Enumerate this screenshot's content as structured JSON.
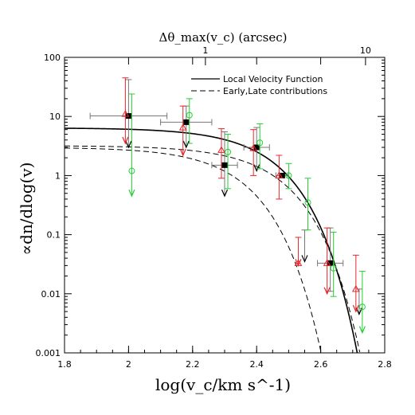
{
  "chart_data": {
    "type": "scatter",
    "title": "",
    "xlabel": "log(v_c/km s^-1)",
    "ylabel": "∝dn/dlog(v)",
    "top_xlabel": "Δθ_max(v_c)  (arcsec)",
    "xlim": [
      1.8,
      2.8
    ],
    "ylim": [
      0.001,
      100
    ],
    "y_scale": "log",
    "x_ticks": [
      1.8,
      2.0,
      2.2,
      2.4,
      2.6,
      2.8
    ],
    "x_tick_labels": [
      "1.8",
      "2",
      "2.2",
      "2.4",
      "2.6",
      "2.8"
    ],
    "y_ticks": [
      0.001,
      0.01,
      0.1,
      1,
      10,
      100
    ],
    "y_tick_labels": [
      "0.001",
      "0.01",
      "0.1",
      "1",
      "10",
      "100"
    ],
    "top_ticks": [
      1,
      10
    ],
    "top_tick_labels": [
      "1",
      "10"
    ],
    "top_tick_x": [
      2.24,
      2.74
    ],
    "legend_position": "top-right",
    "legend": [
      {
        "label": "Local Velocity Function",
        "style": "solid"
      },
      {
        "label": "Early,Late contributions",
        "style": "dashed"
      }
    ],
    "colors": {
      "black": "#000000",
      "red": "#e8242a",
      "green": "#22d032",
      "errbar": "#777777"
    },
    "series": [
      {
        "marker": "square",
        "color": "black",
        "points": [
          {
            "x": 2.0,
            "y": 10.2,
            "xerr": 0.12,
            "ylo": 3.0,
            "yhi": 42,
            "arrow": true
          },
          {
            "x": 2.18,
            "y": 8.0,
            "xerr": 0.08,
            "ylo": 3.0,
            "yhi": 15,
            "arrow": true
          },
          {
            "x": 2.3,
            "y": 1.5,
            "xerr": 0.04,
            "ylo": 0.45,
            "yhi": 5.5,
            "arrow": true
          },
          {
            "x": 2.4,
            "y": 3.0,
            "xerr": 0.04,
            "ylo": 1.2,
            "yhi": 6.5,
            "arrow": true
          },
          {
            "x": 2.48,
            "y": 1.0,
            "xerr": 0.02
          },
          {
            "x": 2.55,
            "y": null,
            "ylo": 0.035,
            "yhi": 0.12,
            "arrow": true
          },
          {
            "x": 2.63,
            "y": 0.033,
            "xerr": 0.04,
            "ylo": 0.011,
            "yhi": 0.13
          },
          {
            "x": 2.72,
            "y": null,
            "ylo": 0.0045,
            "yhi": 0.012,
            "arrow": true
          }
        ]
      },
      {
        "marker": "triangle",
        "color": "red",
        "points": [
          {
            "x": 1.99,
            "y": 11.0,
            "ylo": 3.5,
            "yhi": 45,
            "arrow": true
          },
          {
            "x": 2.17,
            "y": 6.5,
            "ylo": 2.2,
            "yhi": 15,
            "arrow": true
          },
          {
            "x": 2.29,
            "y": 2.7,
            "ylo": 0.9,
            "yhi": 6.2
          },
          {
            "x": 2.39,
            "y": 2.9,
            "ylo": 1.0,
            "yhi": 6.0
          },
          {
            "x": 2.47,
            "y": 1.0,
            "ylo": 0.4,
            "yhi": 2.2
          },
          {
            "x": 2.53,
            "y": 0.033,
            "ylo": 0.03,
            "yhi": 0.09,
            "arrow": true
          },
          {
            "x": 2.62,
            "y": 0.033,
            "ylo": 0.01,
            "yhi": 0.13,
            "arrow": true
          },
          {
            "x": 2.71,
            "y": 0.012,
            "ylo": 0.005,
            "yhi": 0.045,
            "arrow": true
          }
        ]
      },
      {
        "marker": "circle",
        "color": "green",
        "points": [
          {
            "x": 2.01,
            "y": 1.2,
            "ylo": 0.45,
            "yhi": 24,
            "arrow": true
          },
          {
            "x": 2.19,
            "y": 10.5,
            "ylo": 3.5,
            "yhi": 20
          },
          {
            "x": 2.31,
            "y": 2.5,
            "ylo": 0.6,
            "yhi": 5.0
          },
          {
            "x": 2.41,
            "y": 3.6,
            "ylo": 1.3,
            "yhi": 7.5
          },
          {
            "x": 2.5,
            "y": 1.0,
            "ylo": 0.6,
            "yhi": 1.6
          },
          {
            "x": 2.56,
            "y": 0.35,
            "ylo": 0.12,
            "yhi": 0.9
          },
          {
            "x": 2.64,
            "y": 0.027,
            "ylo": 0.009,
            "yhi": 0.11
          },
          {
            "x": 2.73,
            "y": 0.006,
            "ylo": 0.0022,
            "yhi": 0.024,
            "arrow": true
          }
        ]
      }
    ]
  }
}
